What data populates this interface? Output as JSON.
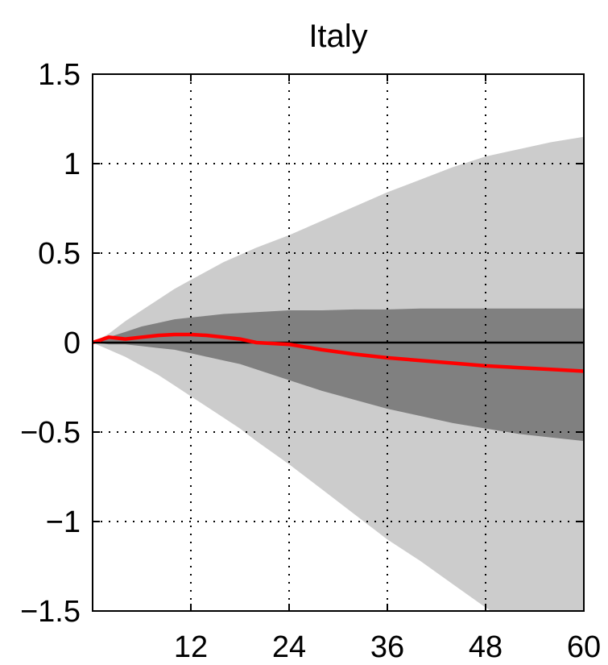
{
  "chart_data": {
    "type": "area",
    "title": "Italy",
    "xlabel": "",
    "ylabel": "",
    "xlim": [
      0,
      60
    ],
    "ylim": [
      -1.5,
      1.5
    ],
    "xticks": [
      12,
      24,
      36,
      48,
      60
    ],
    "yticks": [
      1.5,
      1,
      0.5,
      0,
      -0.5,
      -1,
      -1.5
    ],
    "ytick_labels": [
      "1.5",
      "1",
      "0.5",
      "0",
      "−0.5",
      "−1",
      "−1.5"
    ],
    "grid": true,
    "x": [
      0,
      2,
      4,
      6,
      8,
      10,
      12,
      14,
      16,
      18,
      20,
      24,
      28,
      32,
      36,
      40,
      44,
      48,
      52,
      56,
      60
    ],
    "series": [
      {
        "role": "outer-band",
        "color": "#cccccc",
        "upper": [
          0.0,
          0.05,
          0.12,
          0.18,
          0.24,
          0.3,
          0.35,
          0.4,
          0.45,
          0.49,
          0.53,
          0.6,
          0.68,
          0.76,
          0.84,
          0.91,
          0.98,
          1.04,
          1.08,
          1.12,
          1.15
        ],
        "lower": [
          0.0,
          -0.04,
          -0.08,
          -0.13,
          -0.18,
          -0.24,
          -0.3,
          -0.36,
          -0.42,
          -0.48,
          -0.55,
          -0.68,
          -0.82,
          -0.96,
          -1.1,
          -1.22,
          -1.35,
          -1.48,
          -1.6,
          -1.72,
          -1.82
        ]
      },
      {
        "role": "inner-band",
        "color": "#808080",
        "upper": [
          0.0,
          0.03,
          0.06,
          0.09,
          0.11,
          0.13,
          0.14,
          0.15,
          0.16,
          0.165,
          0.17,
          0.18,
          0.18,
          0.185,
          0.185,
          0.19,
          0.19,
          0.19,
          0.19,
          0.19,
          0.19
        ],
        "lower": [
          0.0,
          -0.01,
          -0.01,
          -0.02,
          -0.03,
          -0.04,
          -0.06,
          -0.08,
          -0.1,
          -0.12,
          -0.15,
          -0.21,
          -0.27,
          -0.32,
          -0.37,
          -0.41,
          -0.45,
          -0.48,
          -0.51,
          -0.53,
          -0.55
        ]
      },
      {
        "role": "median",
        "color": "#ff0000",
        "values": [
          0.0,
          0.03,
          0.02,
          0.03,
          0.04,
          0.045,
          0.045,
          0.04,
          0.03,
          0.02,
          0.0,
          -0.01,
          -0.04,
          -0.065,
          -0.085,
          -0.1,
          -0.115,
          -0.13,
          -0.14,
          -0.15,
          -0.16
        ]
      }
    ]
  }
}
